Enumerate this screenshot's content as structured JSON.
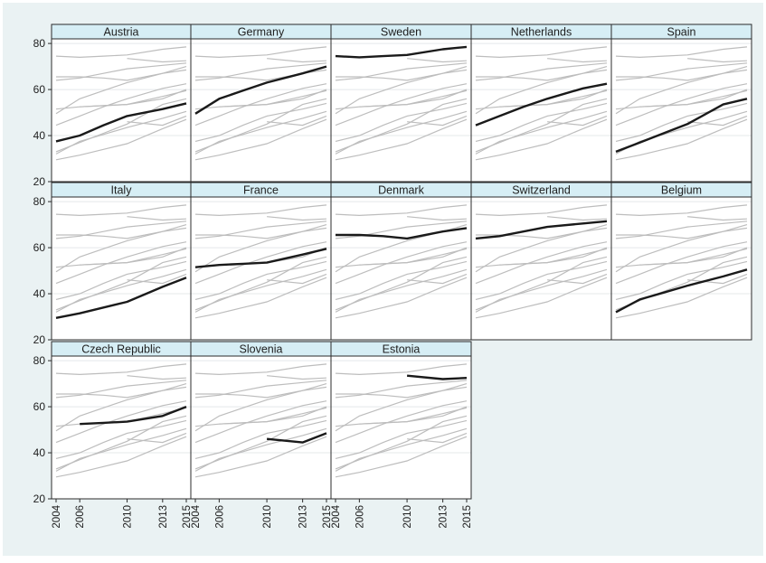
{
  "colors": {
    "outer_bg": "#eaf2f3",
    "panel_bg": "#ffffff",
    "strip_bg": "#d6eef5",
    "highlight": "#1a1a1a",
    "background_lines": "#bdbdbd",
    "grid": "#e4e8ea"
  },
  "chart_data": {
    "type": "line",
    "layout": "small-multiples",
    "columns": 5,
    "xlabel": "",
    "ylabel": "",
    "xlim": [
      2004,
      2015
    ],
    "ylim": [
      20,
      82
    ],
    "x_ticks": [
      2004,
      2006,
      2010,
      2013,
      2015
    ],
    "y_ticks": [
      20,
      40,
      60,
      80
    ],
    "grid": true,
    "legend": "none",
    "series": [
      {
        "name": "Austria",
        "x": [
          2004,
          2006,
          2008,
          2010,
          2013,
          2015
        ],
        "values": [
          37.5,
          40,
          44.5,
          48.5,
          51.5,
          54
        ]
      },
      {
        "name": "Germany",
        "x": [
          2004,
          2006,
          2008,
          2010,
          2013,
          2015
        ],
        "values": [
          49.5,
          56,
          59.5,
          63,
          67,
          70
        ]
      },
      {
        "name": "Sweden",
        "x": [
          2004,
          2006,
          2008,
          2010,
          2013,
          2015
        ],
        "values": [
          74.5,
          74,
          74.5,
          75,
          77.5,
          78.5
        ]
      },
      {
        "name": "Netherlands",
        "x": [
          2004,
          2006,
          2008,
          2010,
          2013,
          2015
        ],
        "values": [
          44.5,
          48.5,
          52.5,
          56,
          60.5,
          62.5
        ]
      },
      {
        "name": "Spain",
        "x": [
          2004,
          2006,
          2008,
          2010,
          2013,
          2015
        ],
        "values": [
          33,
          37,
          41,
          45,
          53.5,
          56
        ]
      },
      {
        "name": "Italy",
        "x": [
          2004,
          2006,
          2008,
          2010,
          2013,
          2015
        ],
        "values": [
          29.5,
          31.5,
          34,
          36.5,
          43,
          47
        ]
      },
      {
        "name": "France",
        "x": [
          2004,
          2006,
          2008,
          2010,
          2013,
          2015
        ],
        "values": [
          51.5,
          52.5,
          53,
          53.5,
          57,
          59.5
        ]
      },
      {
        "name": "Denmark",
        "x": [
          2004,
          2006,
          2008,
          2010,
          2013,
          2015
        ],
        "values": [
          65.5,
          65.5,
          65,
          64,
          67,
          68.5
        ]
      },
      {
        "name": "Switzerland",
        "x": [
          2004,
          2006,
          2008,
          2010,
          2013,
          2015
        ],
        "values": [
          64,
          65,
          67,
          69,
          70.5,
          71.5
        ]
      },
      {
        "name": "Belgium",
        "x": [
          2004,
          2006,
          2008,
          2010,
          2013,
          2015
        ],
        "values": [
          32,
          37.5,
          40.5,
          43.5,
          47.5,
          50.5
        ]
      },
      {
        "name": "Czech Republic",
        "x": [
          2006,
          2008,
          2010,
          2013,
          2015
        ],
        "values": [
          52.5,
          53,
          53.5,
          56,
          60
        ]
      },
      {
        "name": "Slovenia",
        "x": [
          2010,
          2013,
          2015
        ],
        "values": [
          46,
          44.5,
          48.5
        ]
      },
      {
        "name": "Estonia",
        "x": [
          2010,
          2013,
          2015
        ],
        "values": [
          73.5,
          72,
          72.5
        ]
      }
    ]
  }
}
